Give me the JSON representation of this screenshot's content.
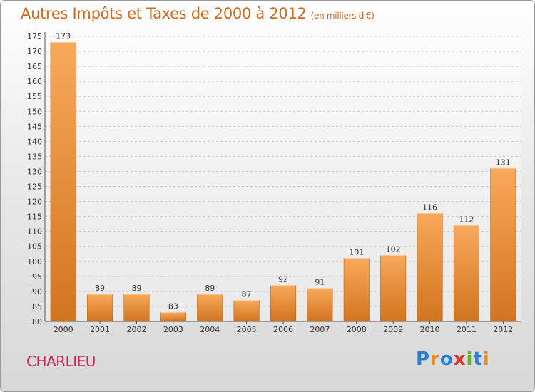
{
  "title": "Autres Impôts et Taxes de 2000 à 2012",
  "unit": "(en milliers d'€)",
  "city": "CHARLIEU",
  "logo": {
    "text": "Proxiti",
    "letters": [
      {
        "ch": "P",
        "color": "#2a7fd4"
      },
      {
        "ch": "r",
        "color": "#f08a1c"
      },
      {
        "ch": "o",
        "color": "#2a7fd4"
      },
      {
        "ch": "x",
        "color": "#e0302a"
      },
      {
        "ch": "i",
        "color": "#6ab023"
      },
      {
        "ch": "t",
        "color": "#2a7fd4"
      },
      {
        "ch": "i",
        "color": "#f08a1c"
      }
    ]
  },
  "colors": {
    "bar_light": "#f7a95a",
    "bar_dark": "#d2741e",
    "title": "#d2691e",
    "city": "#cc2255"
  },
  "chart_data": {
    "type": "bar",
    "title": "Autres Impôts et Taxes de 2000 à 2012",
    "subtitle": "(en milliers d'€)",
    "categories": [
      "2000",
      "2001",
      "2002",
      "2003",
      "2004",
      "2005",
      "2006",
      "2007",
      "2008",
      "2009",
      "2010",
      "2011",
      "2012"
    ],
    "values": [
      173,
      89,
      89,
      83,
      89,
      87,
      92,
      91,
      101,
      102,
      116,
      112,
      131
    ],
    "ylim": [
      80,
      175
    ],
    "yticks": [
      80,
      85,
      90,
      95,
      100,
      105,
      110,
      115,
      120,
      125,
      130,
      135,
      140,
      145,
      150,
      155,
      160,
      165,
      170,
      175
    ],
    "grid": true,
    "xlabel": "",
    "ylabel": ""
  }
}
